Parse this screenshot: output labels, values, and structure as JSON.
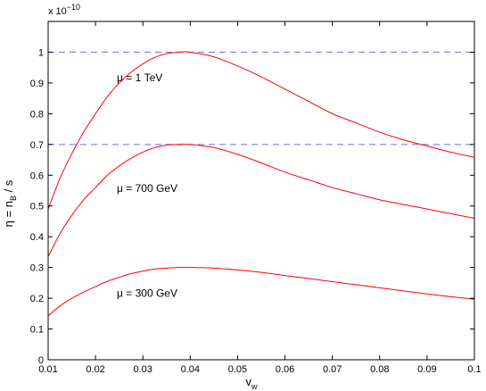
{
  "chart_data": {
    "type": "line",
    "xlabel": {
      "main": "v",
      "sub": "w"
    },
    "ylabel": {
      "main": "η = n",
      "sub": "B",
      "tail": " / s"
    },
    "scale_label": {
      "base": "x 10",
      "exp": "−10"
    },
    "xlim": [
      0.01,
      0.1
    ],
    "ylim": [
      0,
      1.1
    ],
    "xticks": [
      "0.01",
      "0.02",
      "0.03",
      "0.04",
      "0.05",
      "0.06",
      "0.07",
      "0.08",
      "0.09",
      "0.1"
    ],
    "yticks": [
      "0",
      "0.1",
      "0.2",
      "0.3",
      "0.4",
      "0.5",
      "0.6",
      "0.7",
      "0.8",
      "0.9",
      "1"
    ],
    "grid": false,
    "line_color": "#ff0000",
    "reference_color": "#7b7bff",
    "reference_lines": [
      1.0,
      0.7
    ],
    "series": [
      {
        "x": [
          0.01,
          0.0125,
          0.015,
          0.0175,
          0.02,
          0.0225,
          0.025,
          0.0275,
          0.03,
          0.0325,
          0.035,
          0.0375,
          0.04,
          0.045,
          0.05,
          0.055,
          0.06,
          0.065,
          0.07,
          0.075,
          0.08,
          0.085,
          0.09,
          0.095,
          0.1
        ],
        "values": [
          0.49,
          0.59,
          0.67,
          0.74,
          0.8,
          0.855,
          0.9,
          0.935,
          0.962,
          0.983,
          0.995,
          1.0,
          1.0,
          0.985,
          0.955,
          0.92,
          0.88,
          0.84,
          0.8,
          0.77,
          0.74,
          0.715,
          0.695,
          0.675,
          0.658
        ]
      },
      {
        "x": [
          0.01,
          0.0125,
          0.015,
          0.0175,
          0.02,
          0.0225,
          0.025,
          0.0275,
          0.03,
          0.0325,
          0.035,
          0.0375,
          0.04,
          0.045,
          0.05,
          0.055,
          0.06,
          0.065,
          0.07,
          0.075,
          0.08,
          0.085,
          0.09,
          0.095,
          0.1
        ],
        "values": [
          0.335,
          0.41,
          0.47,
          0.52,
          0.56,
          0.6,
          0.63,
          0.655,
          0.675,
          0.69,
          0.698,
          0.7,
          0.7,
          0.69,
          0.668,
          0.64,
          0.61,
          0.585,
          0.56,
          0.54,
          0.52,
          0.505,
          0.49,
          0.475,
          0.46
        ]
      },
      {
        "x": [
          0.01,
          0.0125,
          0.015,
          0.0175,
          0.02,
          0.0225,
          0.025,
          0.0275,
          0.03,
          0.0325,
          0.035,
          0.0375,
          0.04,
          0.045,
          0.05,
          0.055,
          0.06,
          0.065,
          0.07,
          0.075,
          0.08,
          0.085,
          0.09,
          0.095,
          0.1
        ],
        "values": [
          0.143,
          0.175,
          0.2,
          0.22,
          0.238,
          0.255,
          0.268,
          0.28,
          0.288,
          0.295,
          0.298,
          0.3,
          0.3,
          0.298,
          0.292,
          0.284,
          0.274,
          0.264,
          0.254,
          0.244,
          0.234,
          0.224,
          0.214,
          0.205,
          0.197
        ]
      }
    ],
    "annotations": [
      {
        "label": "μ = 1 TeV",
        "x": 0.0245,
        "y": 0.905
      },
      {
        "label": "μ = 700 GeV",
        "x": 0.0245,
        "y": 0.545
      },
      {
        "label": "μ = 300 GeV",
        "x": 0.0245,
        "y": 0.205
      }
    ]
  }
}
